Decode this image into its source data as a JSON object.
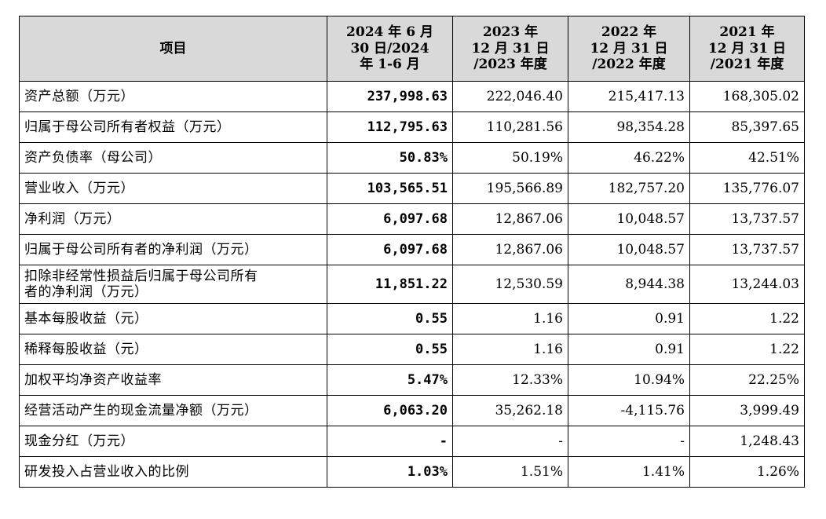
{
  "table": {
    "headers": [
      [
        "项目"
      ],
      [
        "2024 年 6 月",
        "30 日/2024",
        "年 1-6 月"
      ],
      [
        "2023 年",
        "12 月 31 日",
        "/2023 年度"
      ],
      [
        "2022 年",
        "12 月 31 日",
        "/2022 年度"
      ],
      [
        "2021 年",
        "12 月 31 日",
        "/2021 年度"
      ]
    ],
    "rows": [
      {
        "item": [
          "资产总额（万元）"
        ],
        "values": [
          "237,998.63",
          "222,046.40",
          "215,417.13",
          "168,305.02"
        ]
      },
      {
        "item": [
          "归属于母公司所有者权益（万元）"
        ],
        "values": [
          "112,795.63",
          "110,281.56",
          "98,354.28",
          "85,397.65"
        ]
      },
      {
        "item": [
          "资产负债率（母公司）"
        ],
        "values": [
          "50.83%",
          "50.19%",
          "46.22%",
          "42.51%"
        ]
      },
      {
        "item": [
          "营业收入（万元）"
        ],
        "values": [
          "103,565.51",
          "195,566.89",
          "182,757.20",
          "135,776.07"
        ]
      },
      {
        "item": [
          "净利润（万元）"
        ],
        "values": [
          "6,097.68",
          "12,867.06",
          "10,048.57",
          "13,737.57"
        ]
      },
      {
        "item": [
          "归属于母公司所有者的净利润（万元）"
        ],
        "values": [
          "6,097.68",
          "12,867.06",
          "10,048.57",
          "13,737.57"
        ]
      },
      {
        "item": [
          "扣除非经常性损益后归属于母公司所有",
          "者的净利润（万元）"
        ],
        "values": [
          "11,851.22",
          "12,530.59",
          "8,944.38",
          "13,244.03"
        ]
      },
      {
        "item": [
          "基本每股收益（元）"
        ],
        "values": [
          "0.55",
          "1.16",
          "0.91",
          "1.22"
        ]
      },
      {
        "item": [
          "稀释每股收益（元）"
        ],
        "values": [
          "0.55",
          "1.16",
          "0.91",
          "1.22"
        ]
      },
      {
        "item": [
          "加权平均净资产收益率"
        ],
        "values": [
          "5.47%",
          "12.33%",
          "10.94%",
          "22.25%"
        ]
      },
      {
        "item": [
          "经营活动产生的现金流量净额（万元）"
        ],
        "values": [
          "6,063.20",
          "35,262.18",
          "-4,115.76",
          "3,999.49"
        ]
      },
      {
        "item": [
          "现金分红（万元）"
        ],
        "values": [
          "-",
          "-",
          "-",
          "1,248.43"
        ]
      },
      {
        "item": [
          "研发投入占营业收入的比例"
        ],
        "values": [
          "1.03%",
          "1.51%",
          "1.41%",
          "1.26%"
        ]
      }
    ]
  }
}
